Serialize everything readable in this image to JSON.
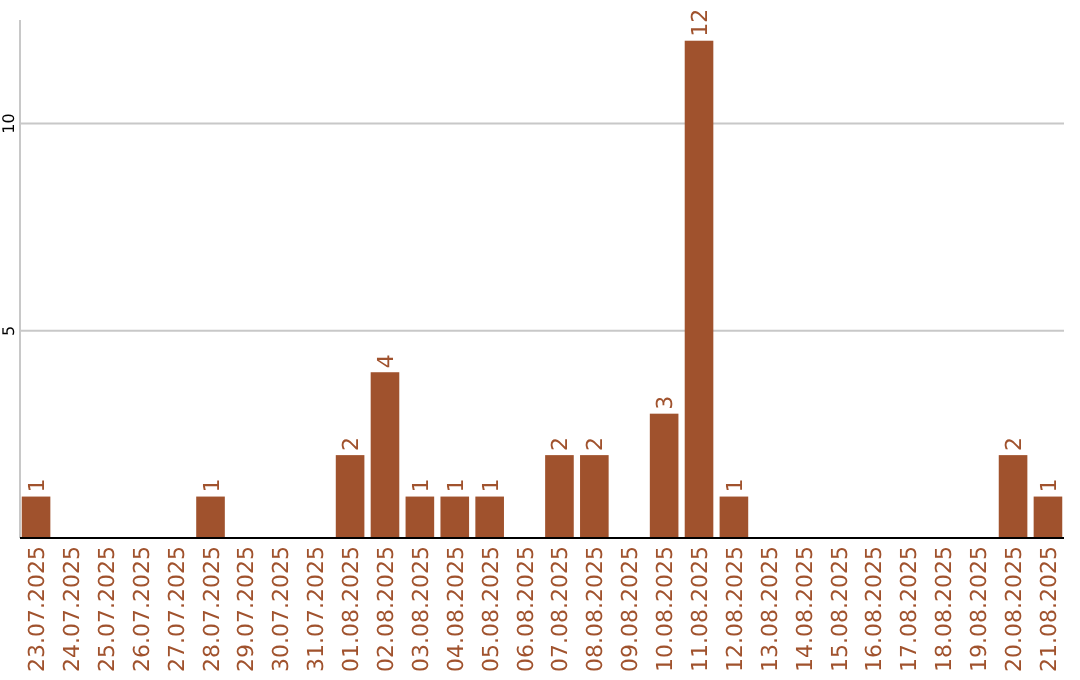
{
  "chart_data": {
    "type": "bar",
    "categories": [
      "23.07.2025",
      "24.07.2025",
      "25.07.2025",
      "26.07.2025",
      "27.07.2025",
      "28.07.2025",
      "29.07.2025",
      "30.07.2025",
      "31.07.2025",
      "01.08.2025",
      "02.08.2025",
      "03.08.2025",
      "04.08.2025",
      "05.08.2025",
      "06.08.2025",
      "07.08.2025",
      "08.08.2025",
      "09.08.2025",
      "10.08.2025",
      "11.08.2025",
      "12.08.2025",
      "13.08.2025",
      "14.08.2025",
      "15.08.2025",
      "16.08.2025",
      "17.08.2025",
      "18.08.2025",
      "19.08.2025",
      "20.08.2025",
      "21.08.2025"
    ],
    "values": [
      1,
      0,
      0,
      0,
      0,
      1,
      0,
      0,
      0,
      2,
      4,
      1,
      1,
      1,
      0,
      2,
      2,
      0,
      3,
      12,
      1,
      0,
      0,
      0,
      0,
      0,
      0,
      0,
      2,
      1
    ],
    "value_labels": [
      "1",
      null,
      null,
      null,
      null,
      "1",
      null,
      null,
      null,
      "2",
      "4",
      "1",
      "1",
      "1",
      null,
      "2",
      "2",
      null,
      "3",
      "12",
      "1",
      null,
      null,
      null,
      null,
      null,
      null,
      null,
      "2",
      "1"
    ],
    "color": "#a0522d",
    "ylim": [
      0,
      12.5
    ],
    "yticks": [
      5,
      10
    ],
    "grid": "y"
  }
}
